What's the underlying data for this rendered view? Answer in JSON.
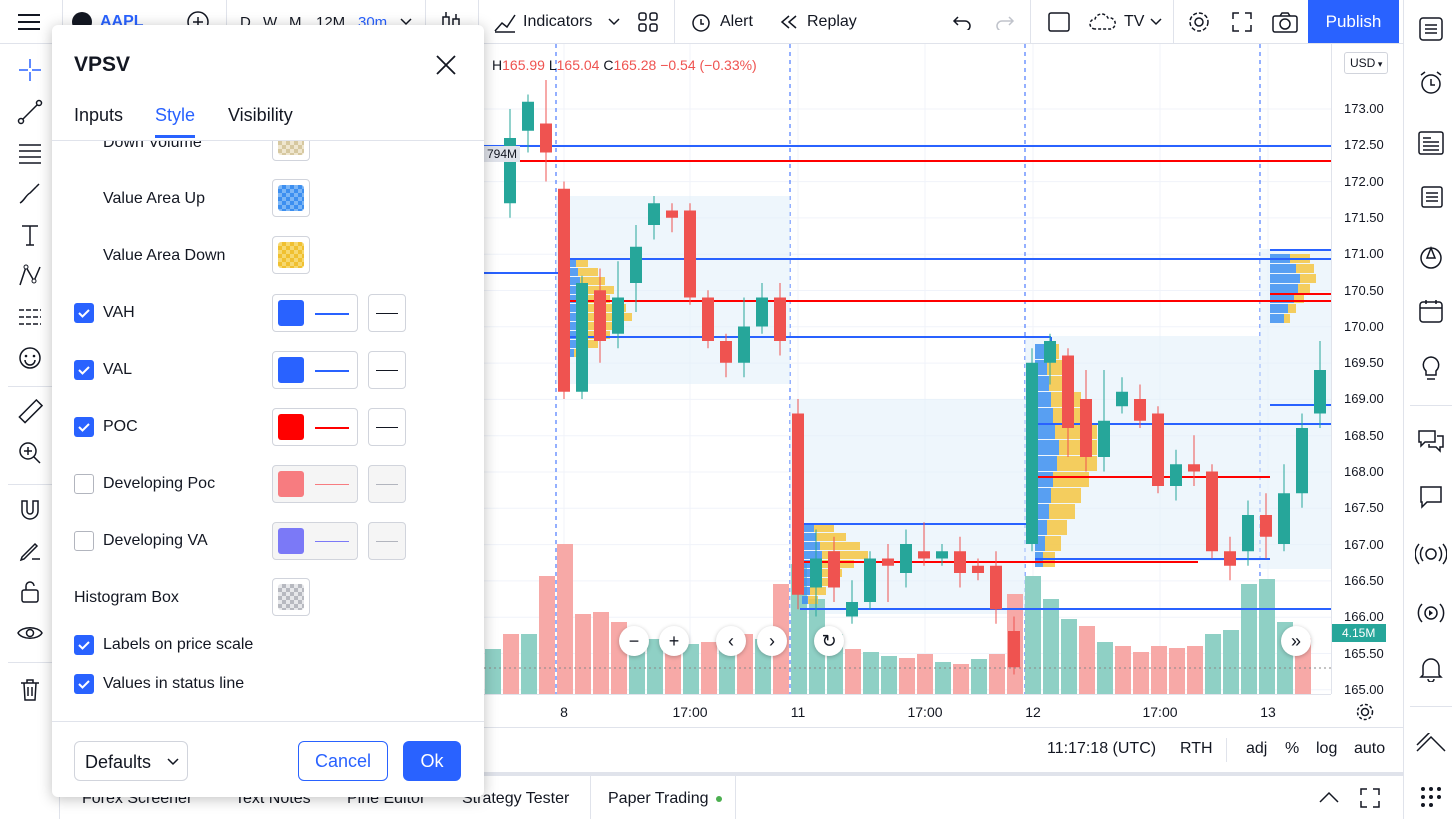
{
  "topbar": {
    "symbol": "AAPL",
    "intervals": [
      "D",
      "W",
      "M",
      "12M",
      "30m"
    ],
    "active_interval": "30m",
    "indicators_label": "Indicators",
    "alert_label": "Alert",
    "replay_label": "Replay",
    "layout_label": "TV",
    "publish_label": "Publish"
  },
  "ohlc": {
    "high_prefix": "H",
    "high": "165.99",
    "low_prefix": "L",
    "low": "165.04",
    "close_prefix": "C",
    "close": "165.28",
    "change": "−0.54 (−0.33%)"
  },
  "volume_label_partial": "794M",
  "currency": "USD",
  "price_ticks": [
    "173.00",
    "172.50",
    "172.00",
    "171.50",
    "171.00",
    "170.50",
    "170.00",
    "169.50",
    "169.00",
    "168.50",
    "168.00",
    "167.50",
    "167.00",
    "166.50",
    "166.00",
    "165.50",
    "165.00"
  ],
  "volume_badge": "4.15M",
  "time_ticks": [
    "8",
    "17:00",
    "11",
    "17:00",
    "12",
    "17:00",
    "13"
  ],
  "status": {
    "clock": "11:17:18 (UTC)",
    "session": "RTH",
    "adj": "adj",
    "percent": "%",
    "log": "log",
    "auto": "auto"
  },
  "bottom_tabs": [
    "Forex Screener",
    "Text Notes",
    "Pine Editor",
    "Strategy Tester",
    "Paper Trading"
  ],
  "dialog": {
    "title": "VPSV",
    "tabs": [
      "Inputs",
      "Style",
      "Visibility"
    ],
    "active_tab": "Style",
    "rows": {
      "down_volume": "Down Volume",
      "value_area_up": "Value Area Up",
      "value_area_down": "Value Area Down",
      "vah": "VAH",
      "val": "VAL",
      "poc": "POC",
      "developing_poc": "Developing Poc",
      "developing_va": "Developing VA",
      "histogram_box": "Histogram Box",
      "labels_on_price_scale": "Labels on price scale",
      "values_in_status_line": "Values in status line"
    },
    "checked": {
      "vah": true,
      "val": true,
      "poc": true,
      "developing_poc": false,
      "developing_va": false,
      "labels_on_price_scale": true,
      "values_in_status_line": true
    },
    "colors": {
      "vah": "#2962ff",
      "val": "#2962ff",
      "poc": "#ff0000",
      "developing_poc": "#f77c80",
      "developing_va": "#7b79f7"
    },
    "defaults_label": "Defaults",
    "cancel_label": "Cancel",
    "ok_label": "Ok"
  },
  "colors": {
    "accent": "#2962ff",
    "up": "#26a69a",
    "down": "#ef5350",
    "volume_up": "#8fd0c5",
    "volume_down": "#f7a9a7"
  }
}
